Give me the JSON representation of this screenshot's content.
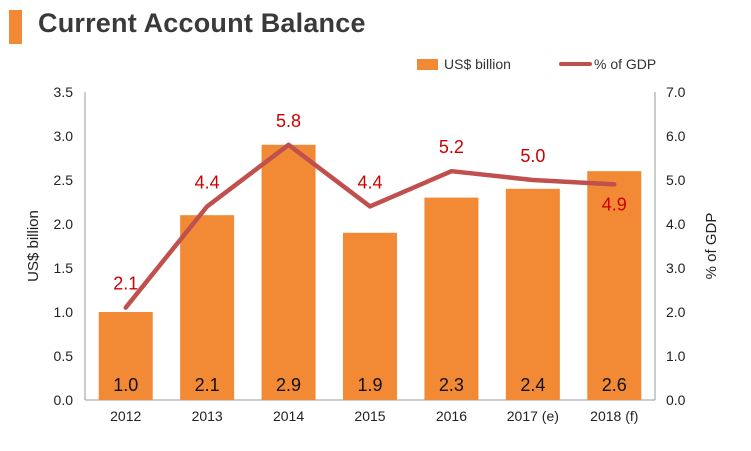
{
  "title": "Current Account Balance",
  "colors": {
    "bar": "#f28a35",
    "line": "#c0504d",
    "pct_label": "#cc0000",
    "title_accent": "#f28a35"
  },
  "legend": {
    "bar_label": "US$ billion",
    "line_label": "% of GDP"
  },
  "chart_data": {
    "type": "bar",
    "combo": "bar-line-dual-axis",
    "categories": [
      "2012",
      "2013",
      "2014",
      "2015",
      "2016",
      "2017 (e)",
      "2018 (f)"
    ],
    "series": [
      {
        "name": "US$ billion",
        "type": "bar",
        "axis": "left",
        "values": [
          1.0,
          2.1,
          2.9,
          1.9,
          2.3,
          2.4,
          2.6
        ],
        "labels": [
          "1.0",
          "2.1",
          "2.9",
          "1.9",
          "2.3",
          "2.4",
          "2.6"
        ]
      },
      {
        "name": "% of GDP",
        "type": "line",
        "axis": "right",
        "values": [
          2.1,
          4.4,
          5.8,
          4.4,
          5.2,
          5.0,
          4.9
        ],
        "labels": [
          "2.1",
          "4.4",
          "5.8",
          "4.4",
          "5.2",
          "5.0",
          "4.9"
        ]
      }
    ],
    "ylabel": "US$ billion",
    "y2label": "% of GDP",
    "ylim": [
      0,
      3.5
    ],
    "y2lim": [
      0,
      7.0
    ],
    "yticks": [
      "0.0",
      "0.5",
      "1.0",
      "1.5",
      "2.0",
      "2.5",
      "3.0",
      "3.5"
    ],
    "y2ticks": [
      "0.0",
      "1.0",
      "2.0",
      "3.0",
      "4.0",
      "5.0",
      "6.0",
      "7.0"
    ],
    "legend_position": "top-right",
    "grid": false
  }
}
